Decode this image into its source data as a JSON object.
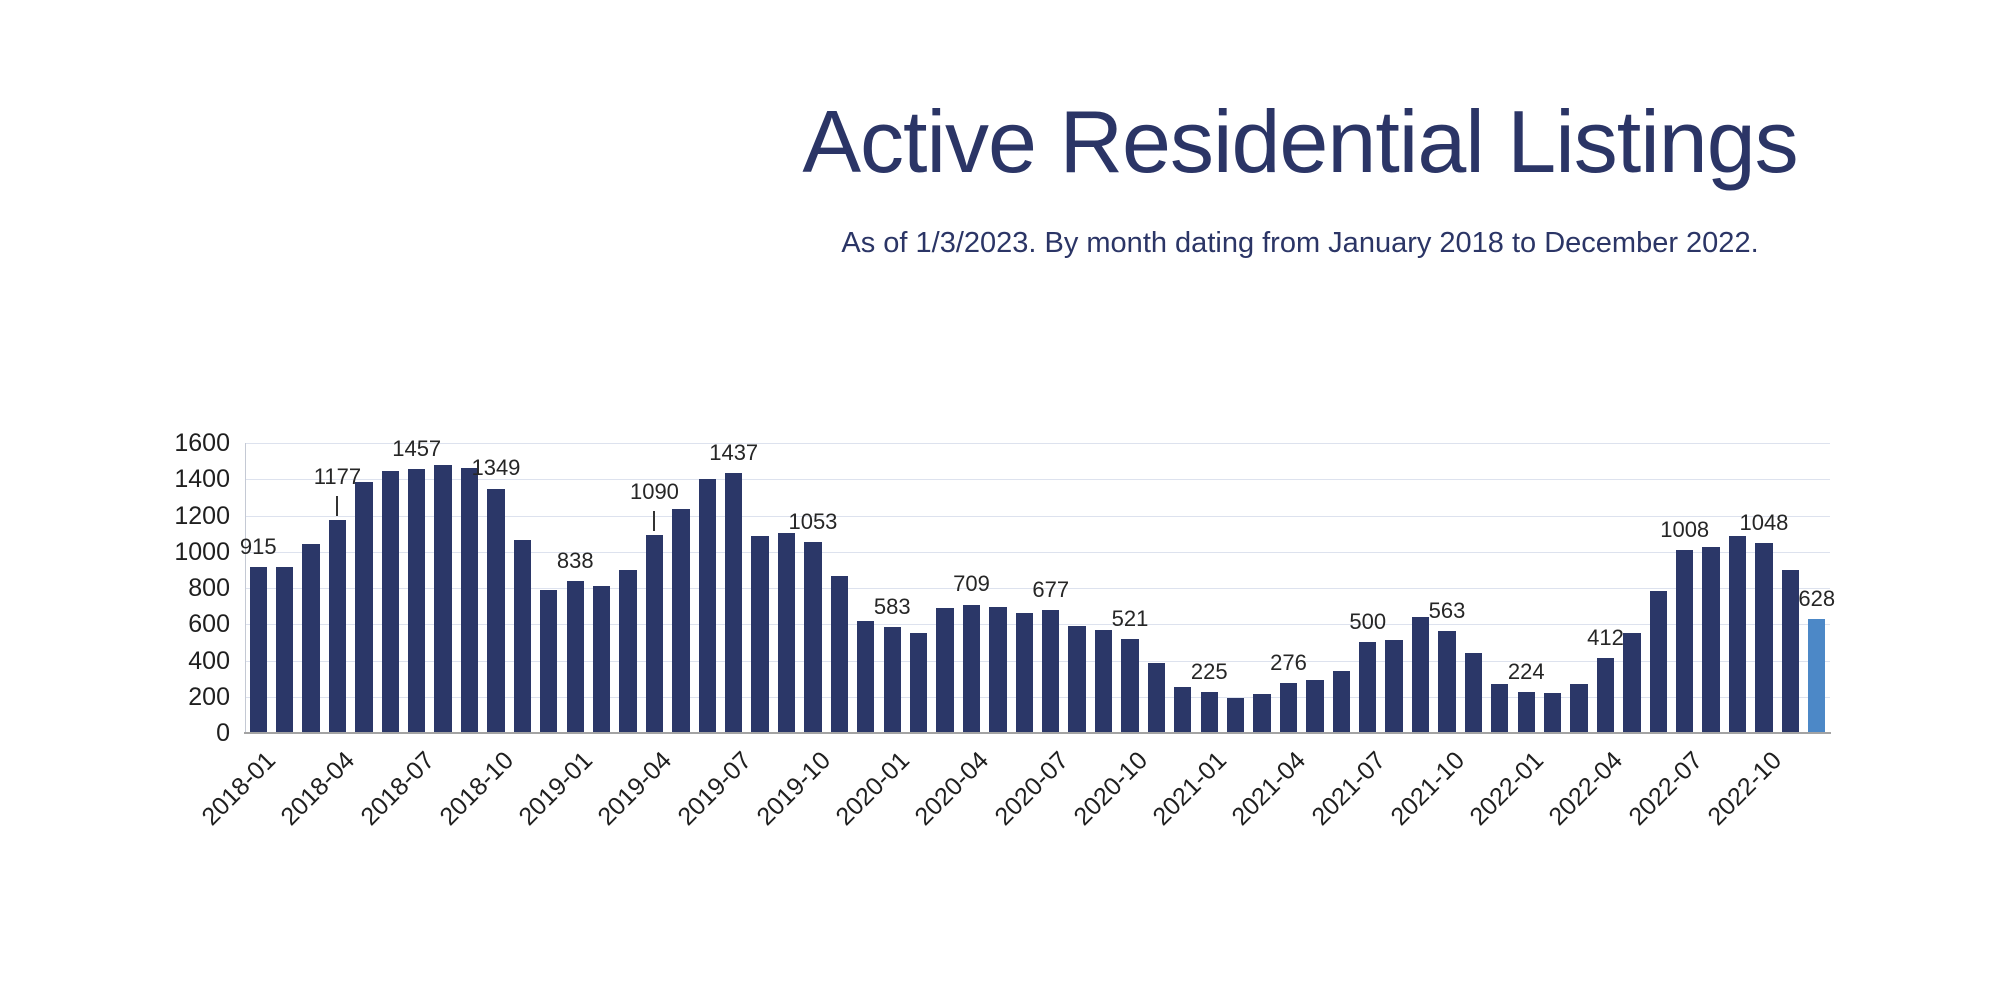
{
  "title": "Active Residential Listings",
  "subtitle": "As of 1/3/2023. By month dating from January 2018 to December 2022.",
  "colors": {
    "title_text": "#2b3566",
    "bar": "#2b3768",
    "highlight_bar": "#4c88c7",
    "grid_line": "#dde2ee",
    "baseline": "#a3a3a3",
    "axis_spine": "#c4c9d4",
    "tick_text": "#1f1f1f",
    "data_label_text": "#262626"
  },
  "chart_data": {
    "type": "bar",
    "title": "Active Residential Listings",
    "subtitle": "As of 1/3/2023. By month dating from January 2018 to December 2022.",
    "xlabel": "",
    "ylabel": "",
    "ylim": [
      0,
      1600
    ],
    "ytick_step": 200,
    "x_tick_interval": 3,
    "grid": true,
    "legend": false,
    "highlight_index": 59,
    "x": [
      "2018-01",
      "2018-02",
      "2018-03",
      "2018-04",
      "2018-05",
      "2018-06",
      "2018-07",
      "2018-08",
      "2018-09",
      "2018-10",
      "2018-11",
      "2018-12",
      "2019-01",
      "2019-02",
      "2019-03",
      "2019-04",
      "2019-05",
      "2019-06",
      "2019-07",
      "2019-08",
      "2019-09",
      "2019-10",
      "2019-11",
      "2019-12",
      "2020-01",
      "2020-02",
      "2020-03",
      "2020-04",
      "2020-05",
      "2020-06",
      "2020-07",
      "2020-08",
      "2020-09",
      "2020-10",
      "2020-11",
      "2020-12",
      "2021-01",
      "2021-02",
      "2021-03",
      "2021-04",
      "2021-05",
      "2021-06",
      "2021-07",
      "2021-08",
      "2021-09",
      "2021-10",
      "2021-11",
      "2021-12",
      "2022-01",
      "2022-02",
      "2022-03",
      "2022-04",
      "2022-05",
      "2022-06",
      "2022-07",
      "2022-08",
      "2022-09",
      "2022-10",
      "2022-11",
      "2022-12"
    ],
    "values": [
      915,
      915,
      1045,
      1177,
      1385,
      1445,
      1457,
      1480,
      1465,
      1349,
      1065,
      790,
      838,
      810,
      900,
      1090,
      1235,
      1400,
      1437,
      1085,
      1105,
      1053,
      865,
      620,
      583,
      550,
      690,
      709,
      695,
      660,
      677,
      590,
      570,
      521,
      385,
      255,
      225,
      195,
      215,
      276,
      295,
      345,
      500,
      515,
      640,
      563,
      440,
      270,
      224,
      220,
      270,
      412,
      550,
      785,
      1008,
      1025,
      1085,
      1048,
      900,
      628
    ],
    "data_labels": [
      {
        "index": 0,
        "text": "915",
        "leader": false
      },
      {
        "index": 3,
        "text": "1177",
        "leader": true
      },
      {
        "index": 6,
        "text": "1457",
        "leader": false
      },
      {
        "index": 9,
        "text": "1349",
        "leader": false
      },
      {
        "index": 12,
        "text": "838",
        "leader": false
      },
      {
        "index": 15,
        "text": "1090",
        "leader": true
      },
      {
        "index": 18,
        "text": "1437",
        "leader": false
      },
      {
        "index": 21,
        "text": "1053",
        "leader": false
      },
      {
        "index": 24,
        "text": "583",
        "leader": false
      },
      {
        "index": 27,
        "text": "709",
        "leader": false
      },
      {
        "index": 30,
        "text": "677",
        "leader": false
      },
      {
        "index": 33,
        "text": "521",
        "leader": false
      },
      {
        "index": 36,
        "text": "225",
        "leader": false
      },
      {
        "index": 39,
        "text": "276",
        "leader": false
      },
      {
        "index": 42,
        "text": "500",
        "leader": false
      },
      {
        "index": 45,
        "text": "563",
        "leader": false
      },
      {
        "index": 48,
        "text": "224",
        "leader": false
      },
      {
        "index": 51,
        "text": "412",
        "leader": false
      },
      {
        "index": 54,
        "text": "1008",
        "leader": false
      },
      {
        "index": 57,
        "text": "1048",
        "leader": false
      },
      {
        "index": 59,
        "text": "628",
        "leader": false
      }
    ]
  }
}
